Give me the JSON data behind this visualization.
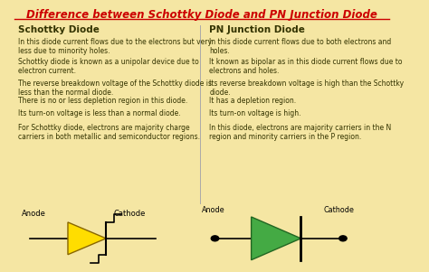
{
  "title": "Difference between Schottky Diode and PN Junction Diode",
  "bg_color": "#f5e6a3",
  "title_color": "#cc0000",
  "header_color": "#333300",
  "text_color": "#333300",
  "col1_header": "Schottky Diode",
  "col2_header": "PN Junction Diode",
  "col1_rows": [
    "In this diode current flows due to the electrons but very\nless due to minority holes.",
    "Schottky diode is known as a unipolar device due to\nelectron current.",
    "The reverse breakdown voltage of the Schottky diode is\nless than the normal diode.",
    "There is no or less depletion region in this diode.",
    "Its turn-on voltage is less than a normal diode.",
    "For Schottky diode, electrons are majority charge\ncarriers in both metallic and semiconductor regions."
  ],
  "col2_rows": [
    "In this diode current flows due to both electrons and\nholes.",
    "It known as bipolar as in this diode current flows due to\nelectrons and holes.",
    "Its reverse breakdown voltage is high than the Schottky\ndiode.",
    "It has a depletion region.",
    "Its turn-on voltage is high.",
    "In this diode, electrons are majority carriers in the N\nregion and minority carriers in the P region."
  ],
  "schottky_color": "#ffdd00",
  "pn_color": "#44aa44",
  "divider_color": "#aaaaaa"
}
